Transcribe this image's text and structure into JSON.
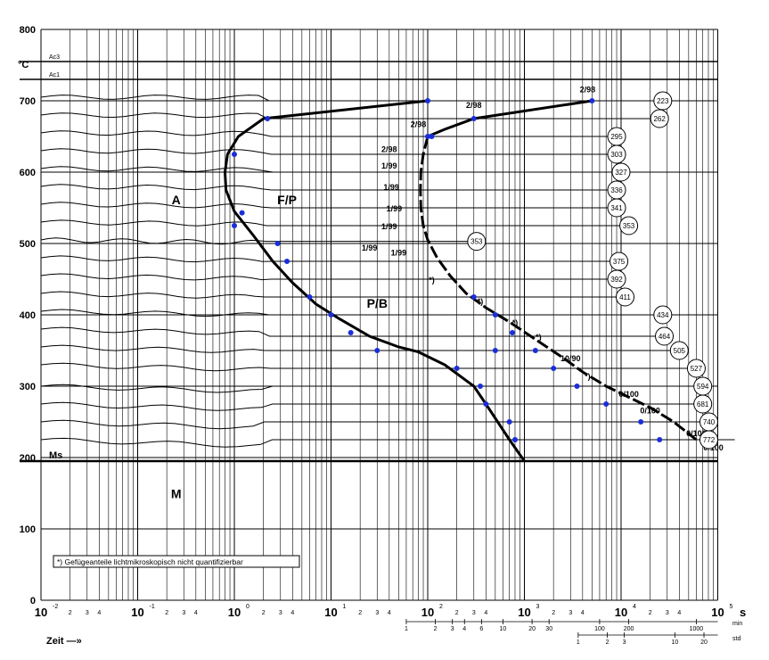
{
  "chart_data": {
    "type": "line",
    "title": "",
    "xlabel": "Zeit —»",
    "ylabel": "°C",
    "x_scale": "log",
    "xlim_s": [
      0.01,
      100000
    ],
    "ylim": [
      0,
      800
    ],
    "y_ticks": [
      0,
      100,
      200,
      300,
      400,
      500,
      600,
      700,
      800
    ],
    "x_decades": [
      "10",
      "10",
      "10",
      "10",
      "10",
      "10",
      "10",
      "10"
    ],
    "x_exponents": [
      "-2",
      "-1",
      "0",
      "1",
      "2",
      "3",
      "4",
      "5"
    ],
    "x_unit_label": "s",
    "min_axis_label": "min",
    "std_axis_label": "std",
    "min_ticks": [
      "1",
      "2",
      "3",
      "4",
      "6",
      "10",
      "20",
      "30",
      "100",
      "200",
      "1000"
    ],
    "std_ticks": [
      "1",
      "2",
      "3",
      "10",
      "20"
    ],
    "reference_lines": [
      {
        "label": "Ac3",
        "value": 755
      },
      {
        "label": "Ac1",
        "value": 730
      },
      {
        "label": "Ms",
        "value": 195
      }
    ],
    "regions": [
      {
        "label": "A",
        "t": 0.25,
        "T": 555
      },
      {
        "label": "F/P",
        "t": 3.5,
        "T": 555
      },
      {
        "label": "P/B",
        "t": 30,
        "T": 410
      },
      {
        "label": "M",
        "t": 0.25,
        "T": 143
      }
    ],
    "boundaries": {
      "ferrite_start": [
        [
          100,
          700
        ],
        [
          2.0,
          675
        ],
        [
          1.1,
          650
        ],
        [
          0.85,
          625
        ],
        [
          0.8,
          600
        ],
        [
          0.82,
          575
        ],
        [
          1.0,
          545
        ],
        [
          1.6,
          510
        ],
        [
          2.5,
          475
        ],
        [
          4,
          445
        ],
        [
          7,
          415
        ],
        [
          12,
          395
        ],
        [
          25,
          370
        ],
        [
          50,
          355
        ],
        [
          80,
          348
        ],
        [
          150,
          330
        ],
        [
          300,
          300
        ],
        [
          400,
          275
        ],
        [
          700,
          225
        ],
        [
          1000,
          195
        ]
      ],
      "ferrite_finish": [
        [
          5000,
          700
        ],
        [
          300,
          675
        ],
        [
          150,
          660
        ],
        [
          100,
          650
        ]
      ],
      "pearlite_finish": [
        [
          100,
          650
        ],
        [
          90,
          625
        ],
        [
          85,
          600
        ],
        [
          84,
          575
        ],
        [
          85,
          550
        ],
        [
          90,
          525
        ],
        [
          100,
          505
        ],
        [
          125,
          480
        ],
        [
          170,
          455
        ],
        [
          250,
          430
        ],
        [
          400,
          410
        ],
        [
          700,
          390
        ],
        [
          1500,
          360
        ],
        [
          2500,
          340
        ],
        [
          4000,
          320
        ],
        [
          7000,
          300
        ],
        [
          20000,
          270
        ],
        [
          35000,
          250
        ],
        [
          60000,
          225
        ]
      ]
    },
    "measured_points": [
      [
        100,
        700
      ],
      [
        5000,
        700
      ],
      [
        2.2,
        675
      ],
      [
        300,
        675
      ],
      [
        1.0,
        625
      ],
      [
        100,
        650
      ],
      [
        110,
        650
      ],
      [
        1.2,
        543
      ],
      [
        1.0,
        525
      ],
      [
        2.8,
        500
      ],
      [
        3.5,
        475
      ],
      [
        6,
        425
      ],
      [
        10,
        400
      ],
      [
        16,
        375
      ],
      [
        30,
        350
      ],
      [
        300,
        425
      ],
      [
        500,
        400
      ],
      [
        750,
        375
      ],
      [
        1300,
        350
      ],
      [
        2000,
        325
      ],
      [
        3500,
        300
      ],
      [
        500,
        350
      ],
      [
        200,
        325
      ],
      [
        350,
        300
      ],
      [
        400,
        275
      ],
      [
        700,
        250
      ],
      [
        800,
        225
      ],
      [
        7000,
        275
      ],
      [
        16000,
        250
      ],
      [
        25000,
        225
      ]
    ],
    "phase_labels": [
      {
        "text": "2/98",
        "t": 4500,
        "T": 712
      },
      {
        "text": "2/98",
        "t": 300,
        "T": 690
      },
      {
        "text": "2/98",
        "t": 80,
        "T": 663
      },
      {
        "text": "2/98",
        "t": 40,
        "T": 628
      },
      {
        "text": "1/99",
        "t": 40,
        "T": 605
      },
      {
        "text": "1/99",
        "t": 42,
        "T": 575
      },
      {
        "text": "1/99",
        "t": 45,
        "T": 545
      },
      {
        "text": "1/99",
        "t": 40,
        "T": 520
      },
      {
        "text": "1/99",
        "t": 25,
        "T": 490
      },
      {
        "text": "1/99",
        "t": 50,
        "T": 483
      },
      {
        "text": "*)",
        "t": 110,
        "T": 445
      },
      {
        "text": "*)",
        "t": 350,
        "T": 415
      },
      {
        "text": "*)",
        "t": 800,
        "T": 385
      },
      {
        "text": "*)",
        "t": 1400,
        "T": 365
      },
      {
        "text": "10/90",
        "t": 3000,
        "T": 335
      },
      {
        "text": "*)",
        "t": 4500,
        "T": 310
      },
      {
        "text": "0/100",
        "t": 12000,
        "T": 285
      },
      {
        "text": "0/100",
        "t": 20000,
        "T": 262
      },
      {
        "text": "0/100",
        "t": 60000,
        "T": 230
      },
      {
        "text": "0/100",
        "t": 90000,
        "T": 210
      }
    ],
    "hardness": [
      {
        "hv": "223",
        "t": 27000,
        "T": 700
      },
      {
        "hv": "262",
        "t": 25000,
        "T": 675
      },
      {
        "hv": "295",
        "t": 9000,
        "T": 650
      },
      {
        "hv": "303",
        "t": 9000,
        "T": 625
      },
      {
        "hv": "327",
        "t": 10000,
        "T": 600
      },
      {
        "hv": "336",
        "t": 9000,
        "T": 575
      },
      {
        "hv": "341",
        "t": 9000,
        "T": 550
      },
      {
        "hv": "353",
        "t": 12000,
        "T": 525
      },
      {
        "hv": "353",
        "t": 320,
        "T": 503
      },
      {
        "hv": "375",
        "t": 9500,
        "T": 475
      },
      {
        "hv": "392",
        "t": 9000,
        "T": 450
      },
      {
        "hv": "411",
        "t": 11000,
        "T": 425
      },
      {
        "hv": "434",
        "t": 27000,
        "T": 400
      },
      {
        "hv": "464",
        "t": 28000,
        "T": 370
      },
      {
        "hv": "505",
        "t": 40000,
        "T": 350
      },
      {
        "hv": "527",
        "t": 60000,
        "T": 325
      },
      {
        "hv": "594",
        "t": 70000,
        "T": 300
      },
      {
        "hv": "681",
        "t": 70000,
        "T": 275
      },
      {
        "hv": "740",
        "t": 85000,
        "T": 250
      },
      {
        "hv": "772",
        "t": 150000,
        "T": 225
      }
    ],
    "cooling_curve_start_temps": [
      705,
      680,
      655,
      630,
      605,
      580,
      555,
      530,
      505,
      480,
      455,
      430,
      405,
      380,
      355,
      330,
      300,
      275,
      250,
      225
    ]
  },
  "footnote": "*) Gefügeanteile lichtmikroskopisch nicht quantifizierbar"
}
